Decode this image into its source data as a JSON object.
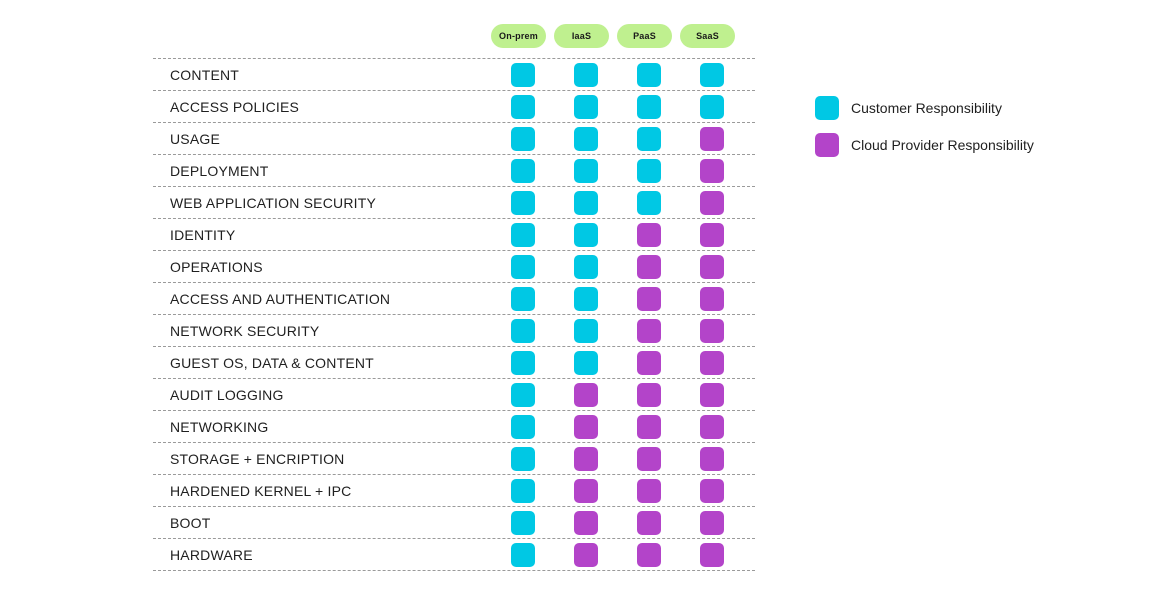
{
  "columns": [
    "On-prem",
    "IaaS",
    "PaaS",
    "SaaS"
  ],
  "colors": {
    "customer": "#00c8e4",
    "provider": "#b344c9"
  },
  "legend": [
    {
      "key": "customer",
      "label": "Customer Responsibility"
    },
    {
      "key": "provider",
      "label": "Cloud Provider Responsibility"
    }
  ],
  "rows": [
    {
      "label": "CONTENT",
      "cells": [
        "customer",
        "customer",
        "customer",
        "customer"
      ]
    },
    {
      "label": "ACCESS POLICIES",
      "cells": [
        "customer",
        "customer",
        "customer",
        "customer"
      ]
    },
    {
      "label": "USAGE",
      "cells": [
        "customer",
        "customer",
        "customer",
        "provider"
      ]
    },
    {
      "label": "DEPLOYMENT",
      "cells": [
        "customer",
        "customer",
        "customer",
        "provider"
      ]
    },
    {
      "label": "WEB APPLICATION SECURITY",
      "cells": [
        "customer",
        "customer",
        "customer",
        "provider"
      ]
    },
    {
      "label": "IDENTITY",
      "cells": [
        "customer",
        "customer",
        "provider",
        "provider"
      ]
    },
    {
      "label": "OPERATIONS",
      "cells": [
        "customer",
        "customer",
        "provider",
        "provider"
      ]
    },
    {
      "label": "ACCESS AND AUTHENTICATION",
      "cells": [
        "customer",
        "customer",
        "provider",
        "provider"
      ]
    },
    {
      "label": "NETWORK SECURITY",
      "cells": [
        "customer",
        "customer",
        "provider",
        "provider"
      ]
    },
    {
      "label": "GUEST OS, DATA & CONTENT",
      "cells": [
        "customer",
        "customer",
        "provider",
        "provider"
      ]
    },
    {
      "label": "AUDIT LOGGING",
      "cells": [
        "customer",
        "provider",
        "provider",
        "provider"
      ]
    },
    {
      "label": "NETWORKING",
      "cells": [
        "customer",
        "provider",
        "provider",
        "provider"
      ]
    },
    {
      "label": "STORAGE + ENCRIPTION",
      "cells": [
        "customer",
        "provider",
        "provider",
        "provider"
      ]
    },
    {
      "label": "HARDENED KERNEL + IPC",
      "cells": [
        "customer",
        "provider",
        "provider",
        "provider"
      ]
    },
    {
      "label": "BOOT",
      "cells": [
        "customer",
        "provider",
        "provider",
        "provider"
      ]
    },
    {
      "label": "HARDWARE",
      "cells": [
        "customer",
        "provider",
        "provider",
        "provider"
      ]
    }
  ]
}
